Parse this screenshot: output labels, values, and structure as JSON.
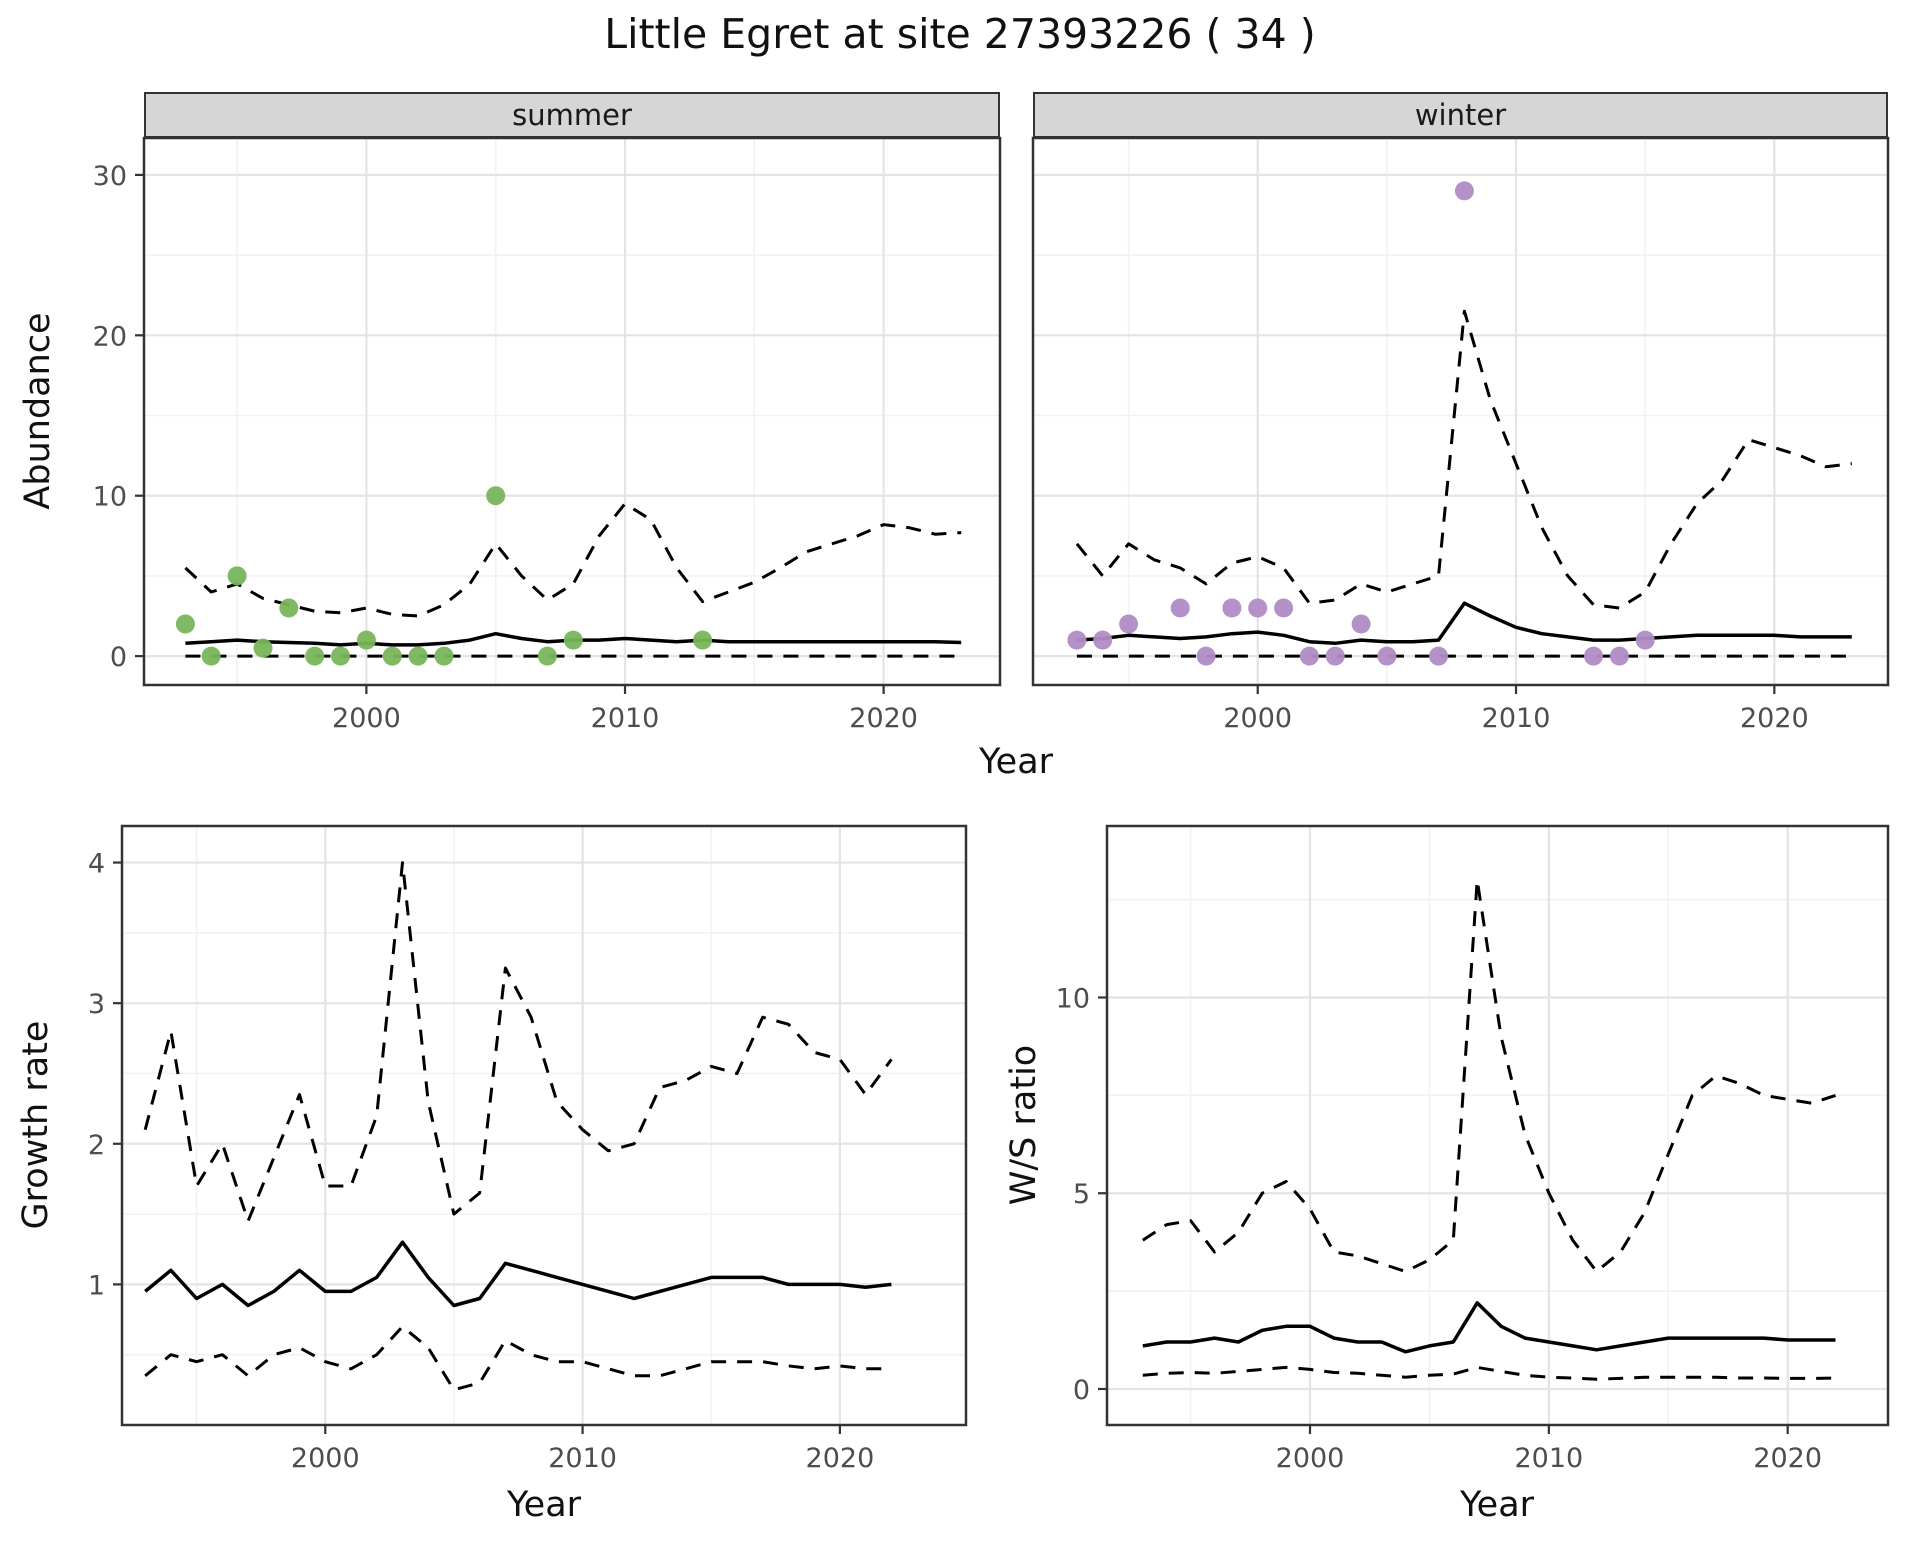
{
  "title": "Little Egret at site 27393226 ( 34 )",
  "facets": [
    "summer",
    "winter"
  ],
  "labels": {
    "x": "Year",
    "y_abundance": "Abundance",
    "y_growth": "Growth rate",
    "y_ws": "W/S ratio"
  },
  "colors": {
    "summer_points": "#79b55b",
    "winter_points": "#b08cc5",
    "line": "#000000",
    "grid_major": "#e4e4e4",
    "grid_minor": "#f2f2f2",
    "strip_bg": "#d6d6d6",
    "panel_border": "#333333",
    "tick_text": "#4d4d4d"
  },
  "chart_data": [
    {
      "id": "abundance-summer",
      "type": "line",
      "facet": "summer",
      "xlabel": "Year",
      "ylabel": "Abundance",
      "xlim": [
        1991.4,
        2024.5
      ],
      "ylim": [
        -1.8,
        32.3
      ],
      "x_ticks": [
        2000,
        2010,
        2020
      ],
      "y_ticks": [
        0,
        10,
        20,
        30
      ],
      "y_labels": true,
      "x": [
        1993,
        1994,
        1995,
        1996,
        1997,
        1998,
        1999,
        2000,
        2001,
        2002,
        2003,
        2004,
        2005,
        2006,
        2007,
        2008,
        2009,
        2010,
        2011,
        2012,
        2013,
        2014,
        2015,
        2016,
        2017,
        2018,
        2019,
        2020,
        2021,
        2022,
        2023
      ],
      "series": [
        {
          "name": "predicted_abundance",
          "style": "solid",
          "values": [
            0.8,
            0.9,
            1.0,
            0.9,
            0.85,
            0.8,
            0.7,
            0.8,
            0.7,
            0.7,
            0.8,
            1.0,
            1.4,
            1.1,
            0.9,
            1.0,
            1.0,
            1.1,
            1.0,
            0.9,
            1.0,
            0.9,
            0.9,
            0.9,
            0.9,
            0.9,
            0.9,
            0.9,
            0.9,
            0.9,
            0.85
          ],
          "display": "fit line"
        },
        {
          "name": "upper_ci",
          "style": "dashed",
          "values": [
            5.5,
            4.0,
            4.5,
            3.6,
            3.2,
            2.8,
            2.7,
            3.0,
            2.6,
            2.5,
            3.2,
            4.5,
            7.0,
            5.0,
            3.5,
            4.5,
            7.5,
            9.5,
            8.5,
            5.5,
            3.4,
            4.0,
            4.6,
            5.5,
            6.5,
            7.0,
            7.5,
            8.2,
            8.0,
            7.6,
            7.7
          ],
          "display": "upper confidence bound"
        },
        {
          "name": "lower_ci",
          "style": "dashed",
          "values": [
            0,
            0,
            0,
            0,
            0,
            0,
            0,
            0,
            0,
            0,
            0,
            0,
            0,
            0,
            0,
            0,
            0,
            0,
            0,
            0,
            0,
            0,
            0,
            0,
            0,
            0,
            0,
            0,
            0,
            0,
            0
          ],
          "display": "lower confidence bound"
        }
      ],
      "points": {
        "name": "observed_counts_summer",
        "color_key": "summer_points",
        "x": [
          1993,
          1994,
          1995,
          1996,
          1997,
          1998,
          1999,
          2000,
          2001,
          2002,
          2003,
          2005,
          2007,
          2008,
          2013
        ],
        "y": [
          2,
          0,
          5,
          0.5,
          3,
          0,
          0,
          1,
          0,
          0,
          0,
          10,
          0,
          1,
          1
        ]
      }
    },
    {
      "id": "abundance-winter",
      "type": "line",
      "facet": "winter",
      "xlabel": "Year",
      "ylabel": "Abundance",
      "xlim": [
        1991.3,
        2024.4
      ],
      "ylim": [
        -1.8,
        32.3
      ],
      "x_ticks": [
        2000,
        2010,
        2020
      ],
      "y_ticks": [
        0,
        10,
        20,
        30
      ],
      "y_labels": false,
      "x": [
        1993,
        1994,
        1995,
        1996,
        1997,
        1998,
        1999,
        2000,
        2001,
        2002,
        2003,
        2004,
        2005,
        2006,
        2007,
        2008,
        2009,
        2010,
        2011,
        2012,
        2013,
        2014,
        2015,
        2016,
        2017,
        2018,
        2019,
        2020,
        2021,
        2022,
        2023
      ],
      "series": [
        {
          "name": "predicted_abundance",
          "style": "solid",
          "values": [
            1.0,
            1.1,
            1.3,
            1.2,
            1.1,
            1.2,
            1.4,
            1.5,
            1.3,
            0.9,
            0.8,
            1.0,
            0.9,
            0.9,
            1.0,
            3.3,
            2.5,
            1.8,
            1.4,
            1.2,
            1.0,
            1.0,
            1.1,
            1.2,
            1.3,
            1.3,
            1.3,
            1.3,
            1.2,
            1.2,
            1.2
          ],
          "display": "fit line"
        },
        {
          "name": "upper_ci",
          "style": "dashed",
          "values": [
            7.0,
            5.0,
            7.0,
            6.0,
            5.5,
            4.5,
            5.8,
            6.2,
            5.5,
            3.3,
            3.5,
            4.5,
            4.0,
            4.5,
            5.0,
            21.5,
            16.0,
            12.0,
            8.0,
            5.0,
            3.2,
            3.0,
            4.0,
            7.0,
            9.5,
            11.0,
            13.5,
            13.0,
            12.5,
            11.8,
            12.0
          ],
          "display": "upper confidence bound"
        },
        {
          "name": "lower_ci",
          "style": "dashed",
          "values": [
            0,
            0,
            0,
            0,
            0,
            0,
            0,
            0,
            0,
            0,
            0,
            0,
            0,
            0,
            0,
            0,
            0,
            0,
            0,
            0,
            0,
            0,
            0,
            0,
            0,
            0,
            0,
            0,
            0,
            0,
            0
          ],
          "display": "lower confidence bound"
        }
      ],
      "points": {
        "name": "observed_counts_winter",
        "color_key": "winter_points",
        "x": [
          1993,
          1994,
          1995,
          1997,
          1998,
          1999,
          2000,
          2001,
          2002,
          2003,
          2004,
          2005,
          2007,
          2008,
          2013,
          2014,
          2015
        ],
        "y": [
          1,
          1,
          2,
          3,
          0,
          3,
          3,
          3,
          0,
          0,
          2,
          0,
          0,
          29,
          0,
          0,
          1
        ]
      }
    },
    {
      "id": "growth-rate",
      "type": "line",
      "xlabel": "Year",
      "ylabel": "Growth rate",
      "xlim": [
        1992.1,
        2024.9
      ],
      "ylim": [
        0,
        4.26
      ],
      "x_ticks": [
        2000,
        2010,
        2020
      ],
      "y_ticks": [
        1,
        2,
        3,
        4
      ],
      "y_labels": true,
      "x": [
        1993,
        1994,
        1995,
        1996,
        1997,
        1998,
        1999,
        2000,
        2001,
        2002,
        2003,
        2004,
        2005,
        2006,
        2007,
        2008,
        2009,
        2010,
        2011,
        2012,
        2013,
        2014,
        2015,
        2016,
        2017,
        2018,
        2019,
        2020,
        2021,
        2022
      ],
      "series": [
        {
          "name": "growth_rate",
          "style": "solid",
          "values": [
            0.95,
            1.1,
            0.9,
            1.0,
            0.85,
            0.95,
            1.1,
            0.95,
            0.95,
            1.05,
            1.3,
            1.05,
            0.85,
            0.9,
            1.15,
            1.1,
            1.05,
            1.0,
            0.95,
            0.9,
            0.95,
            1.0,
            1.05,
            1.05,
            1.05,
            1.0,
            1.0,
            1.0,
            0.98,
            1.0
          ],
          "display": "fit line"
        },
        {
          "name": "upper_ci",
          "style": "dashed",
          "values": [
            2.1,
            2.8,
            1.7,
            2.0,
            1.45,
            1.9,
            2.35,
            1.7,
            1.7,
            2.2,
            4.0,
            2.3,
            1.5,
            1.65,
            3.25,
            2.9,
            2.3,
            2.1,
            1.95,
            2.0,
            2.4,
            2.45,
            2.55,
            2.5,
            2.9,
            2.85,
            2.65,
            2.6,
            2.35,
            2.6
          ],
          "display": "upper confidence bound"
        },
        {
          "name": "lower_ci",
          "style": "dashed",
          "values": [
            0.35,
            0.5,
            0.45,
            0.5,
            0.35,
            0.5,
            0.55,
            0.45,
            0.4,
            0.5,
            0.7,
            0.55,
            0.25,
            0.3,
            0.6,
            0.5,
            0.45,
            0.45,
            0.4,
            0.35,
            0.35,
            0.4,
            0.45,
            0.45,
            0.45,
            0.42,
            0.4,
            0.42,
            0.4,
            0.4
          ],
          "display": "lower confidence bound"
        }
      ]
    },
    {
      "id": "ws-ratio",
      "type": "line",
      "xlabel": "Year",
      "ylabel": "W/S ratio",
      "xlim": [
        1991.5,
        2024.2
      ],
      "ylim": [
        -0.92,
        14.38
      ],
      "x_ticks": [
        2000,
        2010,
        2020
      ],
      "y_ticks": [
        0,
        5,
        10
      ],
      "y_labels": true,
      "x": [
        1993,
        1994,
        1995,
        1996,
        1997,
        1998,
        1999,
        2000,
        2001,
        2002,
        2003,
        2004,
        2005,
        2006,
        2007,
        2008,
        2009,
        2010,
        2011,
        2012,
        2013,
        2014,
        2015,
        2016,
        2017,
        2018,
        2019,
        2020,
        2021,
        2022
      ],
      "series": [
        {
          "name": "ws_ratio",
          "style": "solid",
          "values": [
            1.1,
            1.2,
            1.2,
            1.3,
            1.2,
            1.5,
            1.6,
            1.6,
            1.3,
            1.2,
            1.2,
            0.95,
            1.1,
            1.2,
            2.2,
            1.6,
            1.3,
            1.2,
            1.1,
            1.0,
            1.1,
            1.2,
            1.3,
            1.3,
            1.3,
            1.3,
            1.3,
            1.25,
            1.25,
            1.25
          ],
          "display": "fit line"
        },
        {
          "name": "upper_ci",
          "style": "dashed",
          "values": [
            3.8,
            4.2,
            4.3,
            3.5,
            4.0,
            5.0,
            5.3,
            4.6,
            3.5,
            3.4,
            3.2,
            3.0,
            3.3,
            3.8,
            13.0,
            9.0,
            6.5,
            5.0,
            3.8,
            3.0,
            3.5,
            4.5,
            6.0,
            7.5,
            8.0,
            7.8,
            7.5,
            7.4,
            7.3,
            7.5
          ],
          "display": "upper confidence bound"
        },
        {
          "name": "lower_ci",
          "style": "dashed",
          "values": [
            0.35,
            0.4,
            0.42,
            0.4,
            0.45,
            0.5,
            0.55,
            0.5,
            0.42,
            0.4,
            0.35,
            0.3,
            0.35,
            0.38,
            0.55,
            0.45,
            0.35,
            0.3,
            0.28,
            0.25,
            0.27,
            0.3,
            0.3,
            0.3,
            0.3,
            0.28,
            0.28,
            0.27,
            0.27,
            0.28
          ],
          "display": "lower confidence bound"
        }
      ]
    }
  ]
}
